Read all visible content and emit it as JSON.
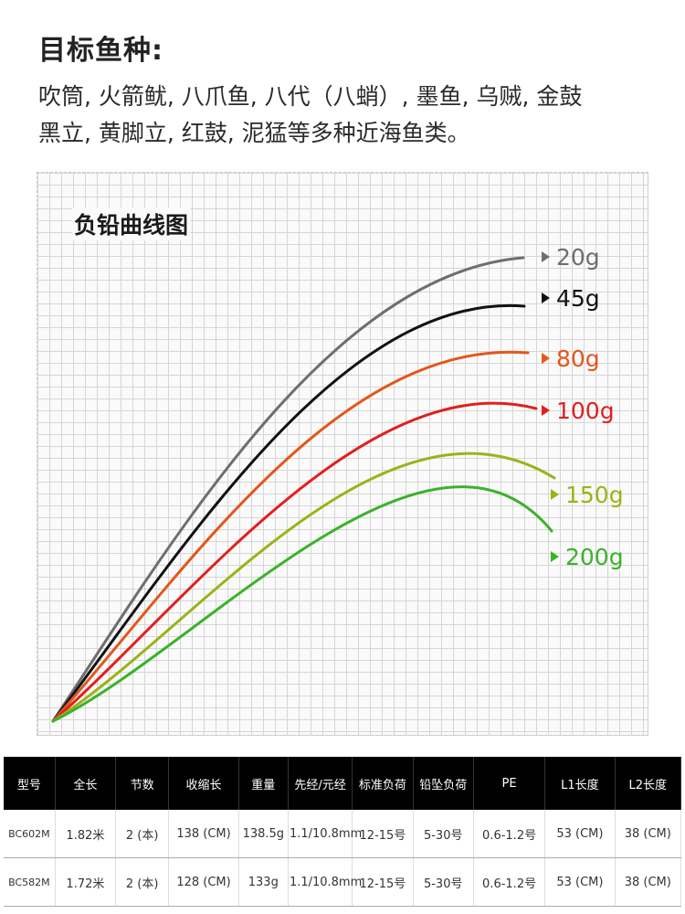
{
  "target": {
    "heading": "目标鱼种:",
    "lines": [
      "吹筒, 火箭鱿, 八爪鱼, 八代（八蛸）, 墨鱼, 乌贼, 金鼓",
      "黑立, 黄脚立, 红鼓, 泥猛等多种近海鱼类。"
    ]
  },
  "chart_data": {
    "type": "line",
    "title": "负铅曲线图",
    "grid": true,
    "series": [
      {
        "name": "20g",
        "color": "#6e6e6e"
      },
      {
        "name": "45g",
        "color": "#111111"
      },
      {
        "name": "80g",
        "color": "#e2571b"
      },
      {
        "name": "100g",
        "color": "#e21f1f"
      },
      {
        "name": "150g",
        "color": "#9db216"
      },
      {
        "name": "200g",
        "color": "#3bb22a"
      }
    ]
  },
  "table": {
    "headers": [
      "型号",
      "全长",
      "节数",
      "收缩长",
      "重量",
      "先经/元经",
      "标准负荷",
      "铅坠负荷",
      "PE",
      "L1长度",
      "L2长度"
    ],
    "rows": [
      [
        "BC602M",
        "1.82米",
        "2 (本)",
        "138 (CM)",
        "138.5g",
        "1.1/10.8mm",
        "12-15号",
        "5-30号",
        "0.6-1.2号",
        "53 (CM)",
        "38 (CM)"
      ],
      [
        "BC582M",
        "1.72米",
        "2 (本)",
        "128 (CM)",
        "133g",
        "1.1/10.8mm",
        "12-15号",
        "5-30号",
        "0.6-1.2号",
        "53 (CM)",
        "38 (CM)"
      ]
    ]
  }
}
